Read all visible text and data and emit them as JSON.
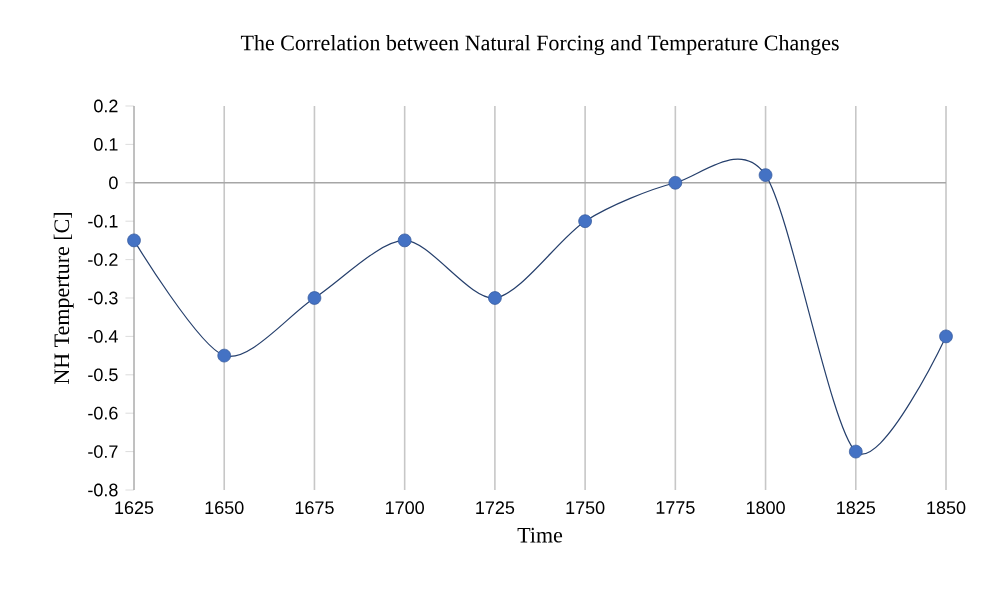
{
  "chart_data": {
    "type": "line",
    "title": "The Correlation between Natural Forcing and Temperature Changes",
    "xlabel": "Time",
    "ylabel": "NH Temperture [C]",
    "x": [
      1625,
      1650,
      1675,
      1700,
      1725,
      1750,
      1775,
      1800,
      1825,
      1850
    ],
    "series": [
      {
        "color": "#4472c4",
        "values": [
          -0.15,
          -0.45,
          -0.3,
          -0.15,
          -0.3,
          -0.1,
          0,
          0.02,
          -0.7,
          -0.4
        ]
      }
    ],
    "xlim": [
      1625,
      1850
    ],
    "xticks": [
      1625,
      1650,
      1675,
      1700,
      1725,
      1750,
      1775,
      1800,
      1825,
      1850
    ],
    "ylim": [
      -0.8,
      0.2
    ],
    "yticks": [
      -0.8,
      -0.7,
      -0.6,
      -0.5,
      -0.4,
      -0.3,
      -0.2,
      -0.1,
      0,
      0.1,
      0.2
    ],
    "ref_lines": [
      {
        "axis": "y",
        "value": 0,
        "color": "#a6a6a6"
      }
    ],
    "grid": "x",
    "marker": "circle",
    "line_style": "solid"
  }
}
